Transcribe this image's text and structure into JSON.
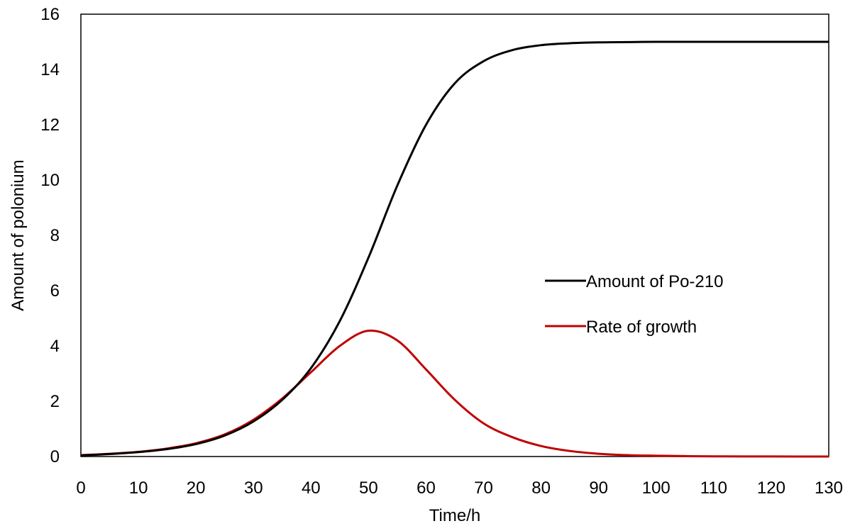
{
  "chart_data": {
    "type": "line",
    "title": "",
    "xlabel": "Time/h",
    "ylabel": "Amount of polonium",
    "xlim": [
      0,
      130
    ],
    "ylim": [
      0,
      16
    ],
    "x_ticks": [
      "0",
      "10",
      "20",
      "30",
      "40",
      "50",
      "60",
      "70",
      "80",
      "90",
      "100",
      "110",
      "120",
      "130"
    ],
    "y_ticks": [
      "0",
      "2",
      "4",
      "6",
      "8",
      "10",
      "12",
      "14",
      "16"
    ],
    "grid": false,
    "legend_position": "center-right",
    "x": [
      0,
      5,
      10,
      15,
      20,
      25,
      30,
      35,
      40,
      45,
      50,
      55,
      60,
      65,
      70,
      75,
      80,
      85,
      90,
      95,
      100,
      105,
      110,
      115,
      120,
      125,
      130
    ],
    "series": [
      {
        "name": "Amount of Po-210",
        "color": "#000000",
        "values": [
          0.04,
          0.09,
          0.16,
          0.27,
          0.45,
          0.76,
          1.27,
          2.05,
          3.2,
          4.9,
          7.2,
          9.8,
          12.0,
          13.5,
          14.3,
          14.7,
          14.88,
          14.95,
          14.98,
          14.99,
          15.0,
          15.0,
          15.0,
          15.0,
          15.0,
          15.0,
          15.0
        ]
      },
      {
        "name": "Rate of growth",
        "color": "#c00000",
        "values": [
          0.05,
          0.1,
          0.17,
          0.29,
          0.48,
          0.8,
          1.33,
          2.1,
          3.05,
          4.0,
          4.55,
          4.2,
          3.15,
          2.05,
          1.2,
          0.7,
          0.38,
          0.2,
          0.1,
          0.05,
          0.03,
          0.015,
          0.008,
          0.004,
          0.002,
          0.001,
          0.0
        ]
      }
    ]
  }
}
